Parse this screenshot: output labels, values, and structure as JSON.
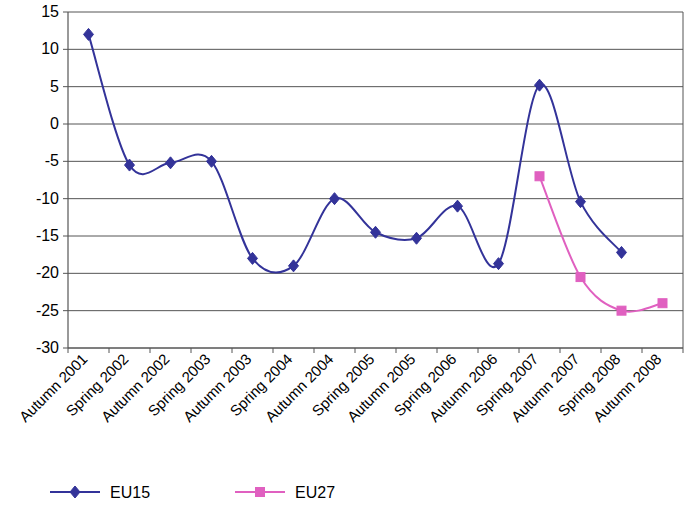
{
  "chart_data": {
    "type": "line",
    "categories": [
      "Autumn 2001",
      "Spring 2002",
      "Autumn 2002",
      "Spring 2003",
      "Autumn 2003",
      "Spring 2004",
      "Autumn 2004",
      "Spring 2005",
      "Autumn 2005",
      "Spring 2006",
      "Autumn 2006",
      "Spring 2007",
      "Autumn 2007",
      "Spring 2008",
      "Autumn 2008"
    ],
    "series": [
      {
        "name": "EU15",
        "color": "#333399",
        "marker": "diamond",
        "line_style": "smooth",
        "values": [
          12,
          -5.5,
          -5.2,
          -5,
          -18,
          -19,
          -10,
          -14.5,
          -15.3,
          -11,
          -18.7,
          5.2,
          -10.4,
          -17.2,
          null
        ]
      },
      {
        "name": "EU27",
        "color": "#e060c0",
        "marker": "square",
        "line_style": "smooth",
        "values": [
          null,
          null,
          null,
          null,
          null,
          null,
          null,
          null,
          null,
          null,
          null,
          -7,
          -20.5,
          -25,
          -24
        ]
      }
    ],
    "ylim": [
      -30,
      15
    ],
    "yticks": [
      -30,
      -25,
      -20,
      -15,
      -10,
      -5,
      0,
      5,
      10,
      15
    ],
    "grid": true,
    "legend": "bottom"
  }
}
